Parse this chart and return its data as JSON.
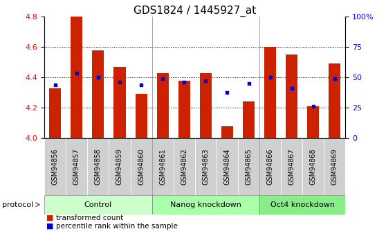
{
  "title": "GDS1824 / 1445927_at",
  "samples": [
    "GSM94856",
    "GSM94857",
    "GSM94858",
    "GSM94859",
    "GSM94860",
    "GSM94861",
    "GSM94862",
    "GSM94863",
    "GSM94864",
    "GSM94865",
    "GSM94866",
    "GSM94867",
    "GSM94868",
    "GSM94869"
  ],
  "bar_values": [
    4.33,
    4.8,
    4.58,
    4.47,
    4.29,
    4.43,
    4.38,
    4.43,
    4.08,
    4.24,
    4.6,
    4.55,
    4.21,
    4.49
  ],
  "dot_values": [
    4.35,
    4.43,
    4.4,
    4.37,
    4.35,
    4.39,
    4.37,
    4.38,
    4.3,
    4.36,
    4.4,
    4.33,
    4.21,
    4.39
  ],
  "ymin": 4.0,
  "ymax": 4.8,
  "yticks_left": [
    4.0,
    4.2,
    4.4,
    4.6,
    4.8
  ],
  "yticks_right": [
    0,
    25,
    50,
    75,
    100
  ],
  "bar_color": "#CC2200",
  "dot_color": "#0000CC",
  "groups": [
    {
      "label": "Control",
      "start": 0,
      "end": 5
    },
    {
      "label": "Nanog knockdown",
      "start": 5,
      "end": 10
    },
    {
      "label": "Oct4 knockdown",
      "start": 10,
      "end": 14
    }
  ],
  "group_colors": [
    "#CCFFCC",
    "#AAFFAA",
    "#88EE88"
  ],
  "sample_tick_bg": "#D0D0D0",
  "plot_bg_color": "#FFFFFF",
  "protocol_label": "protocol",
  "legend_bar": "transformed count",
  "legend_dot": "percentile rank within the sample",
  "title_fontsize": 11,
  "tick_fontsize": 7,
  "group_fontsize": 8,
  "bar_width": 0.55
}
